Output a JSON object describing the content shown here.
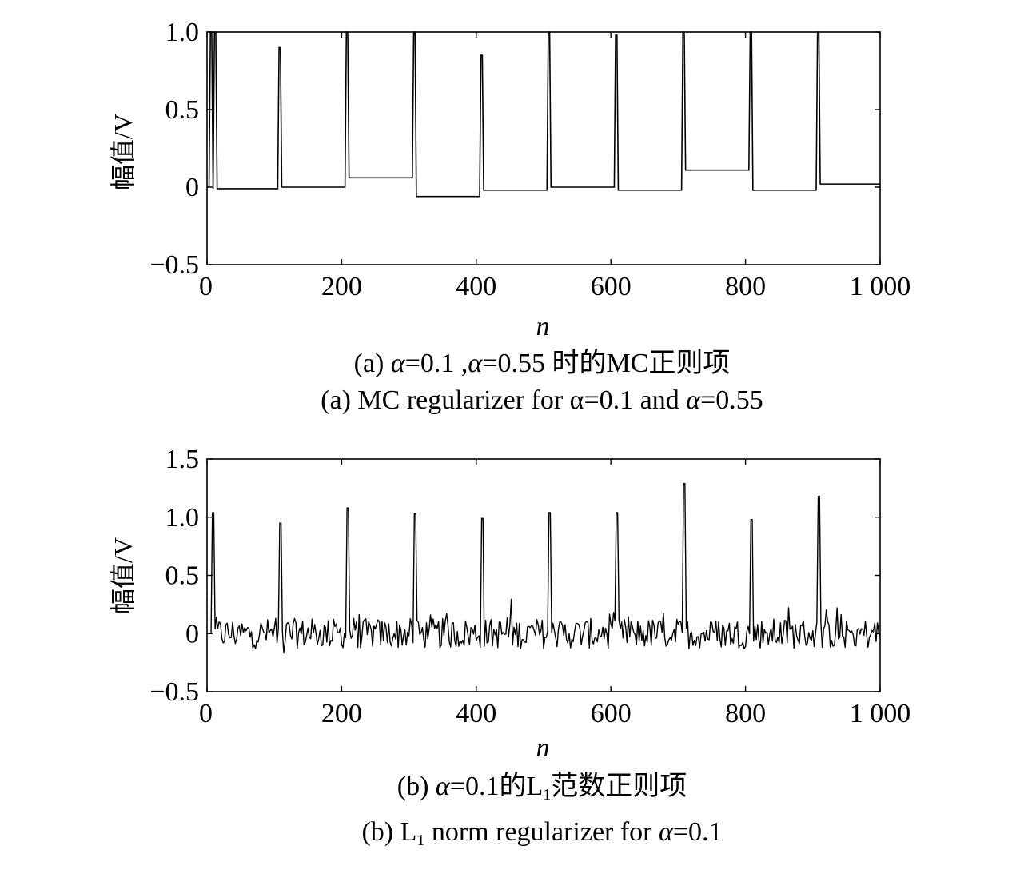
{
  "chart_data": [
    {
      "type": "line",
      "ylabel": "幅值/V",
      "xlabel": "n",
      "xlim": [
        0,
        1000
      ],
      "ylim": [
        -0.5,
        1.0
      ],
      "xticks": [
        0,
        200,
        400,
        600,
        800,
        1000
      ],
      "xtick_labels": [
        "0",
        "200",
        "400",
        "600",
        "800",
        "1 000"
      ],
      "yticks": [
        1.0,
        0.5,
        0,
        -0.5
      ],
      "ytick_labels": [
        "1.0",
        "0.5",
        "0",
        "−0.5"
      ],
      "caption_cn": {
        "pre": "(a) ",
        "a1": "α",
        "mid": "=0.1 ,",
        "a2": "α",
        "post": "=0.55 时的MC正则项"
      },
      "caption_en": {
        "pre": "(a) MC regularizer for α=0.1 and ",
        "a": "α",
        "post": "=0.55"
      },
      "series": [
        {
          "x": [
            0,
            3,
            5,
            7,
            9,
            11,
            13,
            15,
            105,
            107,
            109,
            111,
            113,
            205,
            207,
            209,
            211,
            305,
            307,
            309,
            311,
            405,
            407,
            409,
            411,
            505,
            507,
            509,
            511,
            605,
            607,
            609,
            611,
            705,
            707,
            709,
            711,
            805,
            807,
            809,
            811,
            905,
            907,
            909,
            911,
            1000
          ],
          "y": [
            0.0,
            0.0,
            1.0,
            1.0,
            -0.01,
            1.0,
            1.0,
            -0.01,
            -0.01,
            0.9,
            0.9,
            0.0,
            0.0,
            0.0,
            1.0,
            1.0,
            0.06,
            0.06,
            1.0,
            1.0,
            -0.06,
            -0.06,
            0.85,
            0.85,
            -0.02,
            -0.02,
            1.0,
            1.0,
            0.0,
            0.0,
            0.98,
            0.98,
            -0.02,
            -0.02,
            1.0,
            1.0,
            0.11,
            0.11,
            1.0,
            1.0,
            -0.02,
            -0.02,
            1.0,
            1.0,
            0.02,
            0.02
          ]
        }
      ]
    },
    {
      "type": "line",
      "ylabel": "幅值/V",
      "xlabel": "n",
      "xlim": [
        0,
        1000
      ],
      "ylim": [
        -0.5,
        1.5
      ],
      "xticks": [
        0,
        200,
        400,
        600,
        800,
        1000
      ],
      "xtick_labels": [
        "0",
        "200",
        "400",
        "600",
        "800",
        "1 000"
      ],
      "yticks": [
        1.5,
        1.0,
        0.5,
        0,
        -0.5
      ],
      "ytick_labels": [
        "1.5",
        "1.0",
        "0.5",
        "0",
        "−0.5"
      ],
      "caption_cn": {
        "pre": "(b) ",
        "a1": "α",
        "mid": "=0.1的L",
        "sub": "1",
        "post": "范数正则项"
      },
      "caption_en": {
        "pre": "(b) L",
        "sub": "1",
        "mid": " norm regularizer for ",
        "a": "α",
        "post": "=0.1"
      },
      "spikes": [
        {
          "n": 8,
          "peak": 1.04
        },
        {
          "n": 108,
          "peak": 0.95
        },
        {
          "n": 208,
          "peak": 1.08
        },
        {
          "n": 308,
          "peak": 1.03
        },
        {
          "n": 408,
          "peak": 0.99
        },
        {
          "n": 508,
          "peak": 1.04
        },
        {
          "n": 608,
          "peak": 1.04
        },
        {
          "n": 708,
          "peak": 1.29
        },
        {
          "n": 808,
          "peak": 0.98
        },
        {
          "n": 908,
          "peak": 1.18
        }
      ],
      "noise_amplitude": 0.2
    }
  ]
}
